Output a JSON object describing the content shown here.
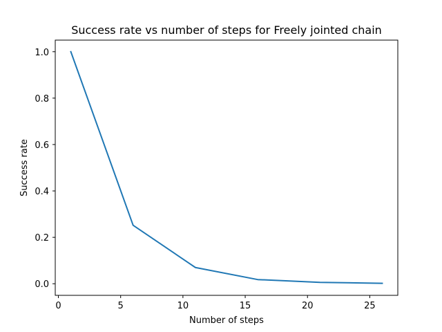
{
  "chart_data": {
    "type": "line",
    "title": "Success rate vs number of steps for Freely jointed chain",
    "xlabel": "Number of steps",
    "ylabel": "Success rate",
    "xlim": [
      -0.25,
      27.25
    ],
    "ylim": [
      -0.05,
      1.05
    ],
    "xticks": [
      0,
      5,
      10,
      15,
      20,
      25
    ],
    "yticks": [
      0.0,
      0.2,
      0.4,
      0.6,
      0.8,
      1.0
    ],
    "xtick_labels": [
      "0",
      "5",
      "10",
      "15",
      "20",
      "25"
    ],
    "ytick_labels": [
      "0.0",
      "0.2",
      "0.4",
      "0.6",
      "0.8",
      "1.0"
    ],
    "grid": false,
    "series": [
      {
        "color": "#1f77b4",
        "x": [
          1,
          6,
          11,
          16,
          21,
          26
        ],
        "y": [
          1.0,
          0.252,
          0.07,
          0.018,
          0.006,
          0.002
        ]
      }
    ]
  }
}
